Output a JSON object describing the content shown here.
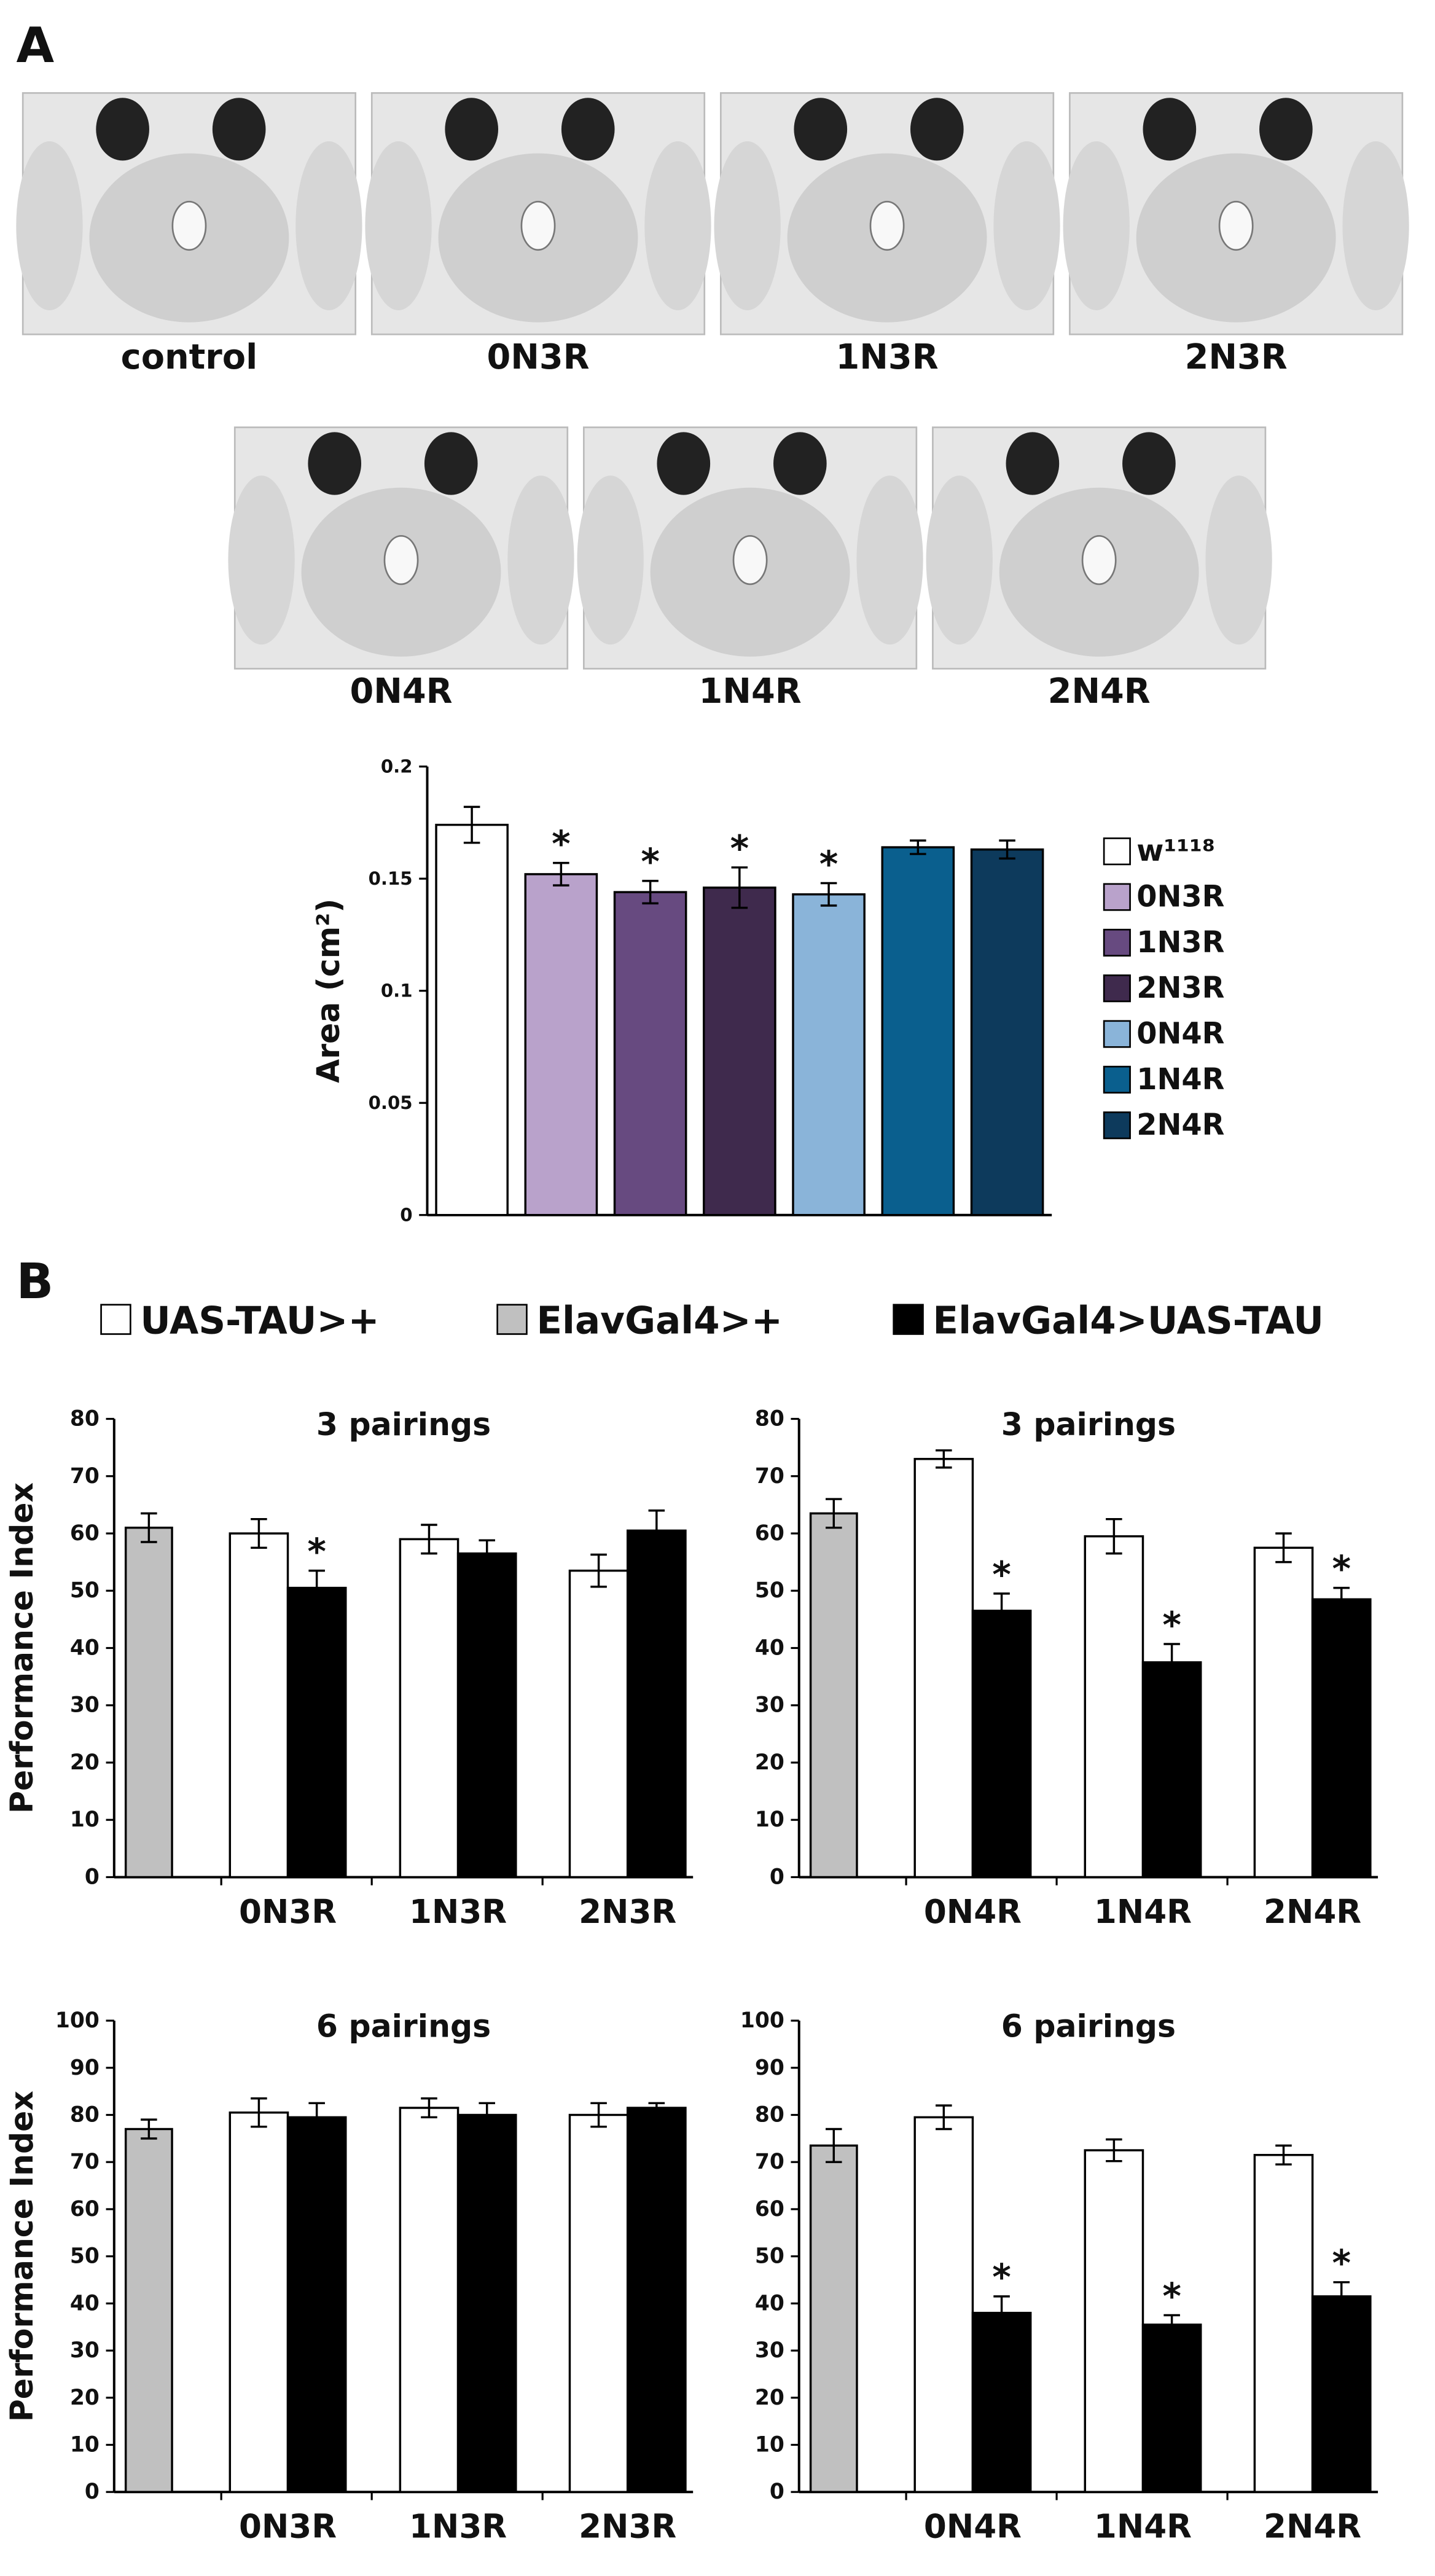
{
  "panel_labels": [
    "A",
    "B"
  ],
  "images": [
    {
      "caption": "control"
    },
    {
      "caption": "0N3R"
    },
    {
      "caption": "1N3R"
    },
    {
      "caption": "2N3R"
    },
    {
      "caption": "0N4R"
    },
    {
      "caption": "1N4R"
    },
    {
      "caption": "2N4R"
    }
  ],
  "chart_data": [
    {
      "type": "bar",
      "y_label": "Area (cm²)",
      "categories": [
        "w¹¹¹⁸",
        "0N3R",
        "1N3R",
        "2N3R",
        "0N4R",
        "1N4R",
        "2N4R"
      ],
      "colors": [
        "#ffffff",
        "#b9a2cb",
        "#674a80",
        "#3f2a4d",
        "#8ab4d9",
        "#0a5f8e",
        "#0d3a5c"
      ],
      "values": [
        0.174,
        0.152,
        0.144,
        0.146,
        0.143,
        0.164,
        0.163
      ],
      "errors": [
        0.008,
        0.005,
        0.005,
        0.009,
        0.005,
        0.003,
        0.004
      ],
      "significance": [
        null,
        "*",
        "*",
        "*",
        "*",
        null,
        null
      ],
      "ylim": [
        0,
        0.2
      ],
      "yticks": [
        0,
        0.05,
        0.1,
        0.15,
        0.2
      ],
      "legend": "right"
    },
    {
      "type": "grouped_bar",
      "title": "3 pairings",
      "y_label": "Performance Index",
      "categories": [
        null,
        "0N3R",
        "1N3R",
        "2N3R"
      ],
      "series": [
        {
          "name": "UAS-TAU>+",
          "color": "#ffffff",
          "values": [
            null,
            60,
            59,
            53.5
          ],
          "errors": [
            null,
            2.5,
            2.5,
            2.8
          ]
        },
        {
          "name": "ElavGal4>+",
          "color": "#c0c0c0",
          "values": [
            61,
            null,
            null,
            null
          ],
          "errors": [
            2.5,
            null,
            null,
            null
          ]
        },
        {
          "name": "ElavGal4>UAS-TAU",
          "color": "#000000",
          "values": [
            null,
            50.5,
            56.5,
            60.5
          ],
          "errors": [
            null,
            3,
            2.3,
            3.5
          ],
          "significance": [
            null,
            "*",
            null,
            null
          ]
        }
      ],
      "ylim": [
        0,
        80
      ],
      "yticks": [
        0,
        10,
        20,
        30,
        40,
        50,
        60,
        70,
        80
      ],
      "legend": "top"
    },
    {
      "type": "grouped_bar",
      "title": "3 pairings",
      "categories": [
        null,
        "0N4R",
        "1N4R",
        "2N4R"
      ],
      "series": [
        {
          "color": "#ffffff",
          "values": [
            null,
            73,
            59.5,
            57.5
          ],
          "errors": [
            null,
            1.5,
            3,
            2.5
          ]
        },
        {
          "color": "#c0c0c0",
          "values": [
            63.5,
            null,
            null,
            null
          ],
          "errors": [
            2.5,
            null,
            null,
            null
          ]
        },
        {
          "color": "#000000",
          "values": [
            null,
            46.5,
            37.5,
            48.5
          ],
          "errors": [
            null,
            3,
            3.2,
            2
          ],
          "significance": [
            null,
            "*",
            "*",
            "*"
          ]
        }
      ],
      "ylim": [
        0,
        80
      ],
      "yticks": [
        0,
        10,
        20,
        30,
        40,
        50,
        60,
        70,
        80
      ]
    },
    {
      "type": "grouped_bar",
      "title": "6 pairings",
      "y_label": "Performance Index",
      "categories": [
        null,
        "0N3R",
        "1N3R",
        "2N3R"
      ],
      "series": [
        {
          "color": "#ffffff",
          "values": [
            null,
            80.5,
            81.5,
            80
          ],
          "errors": [
            null,
            3,
            2,
            2.5
          ]
        },
        {
          "color": "#c0c0c0",
          "values": [
            77,
            null,
            null,
            null
          ],
          "errors": [
            2,
            null,
            null,
            null
          ]
        },
        {
          "color": "#000000",
          "values": [
            null,
            79.5,
            80,
            81.5
          ],
          "errors": [
            null,
            3,
            2.5,
            1
          ]
        }
      ],
      "ylim": [
        0,
        100
      ],
      "yticks": [
        0,
        10,
        20,
        30,
        40,
        50,
        60,
        70,
        80,
        90,
        100
      ]
    },
    {
      "type": "grouped_bar",
      "title": "6 pairings",
      "categories": [
        null,
        "0N4R",
        "1N4R",
        "2N4R"
      ],
      "series": [
        {
          "color": "#ffffff",
          "values": [
            null,
            79.5,
            72.5,
            71.5
          ],
          "errors": [
            null,
            2.5,
            2.3,
            2
          ]
        },
        {
          "color": "#c0c0c0",
          "values": [
            73.5,
            null,
            null,
            null
          ],
          "errors": [
            3.5,
            null,
            null,
            null
          ]
        },
        {
          "color": "#000000",
          "values": [
            null,
            38,
            35.5,
            41.5
          ],
          "errors": [
            null,
            3.5,
            2,
            3
          ],
          "significance": [
            null,
            "*",
            "*",
            "*"
          ]
        }
      ],
      "ylim": [
        0,
        100
      ],
      "yticks": [
        0,
        10,
        20,
        30,
        40,
        50,
        60,
        70,
        80,
        90,
        100
      ]
    }
  ]
}
